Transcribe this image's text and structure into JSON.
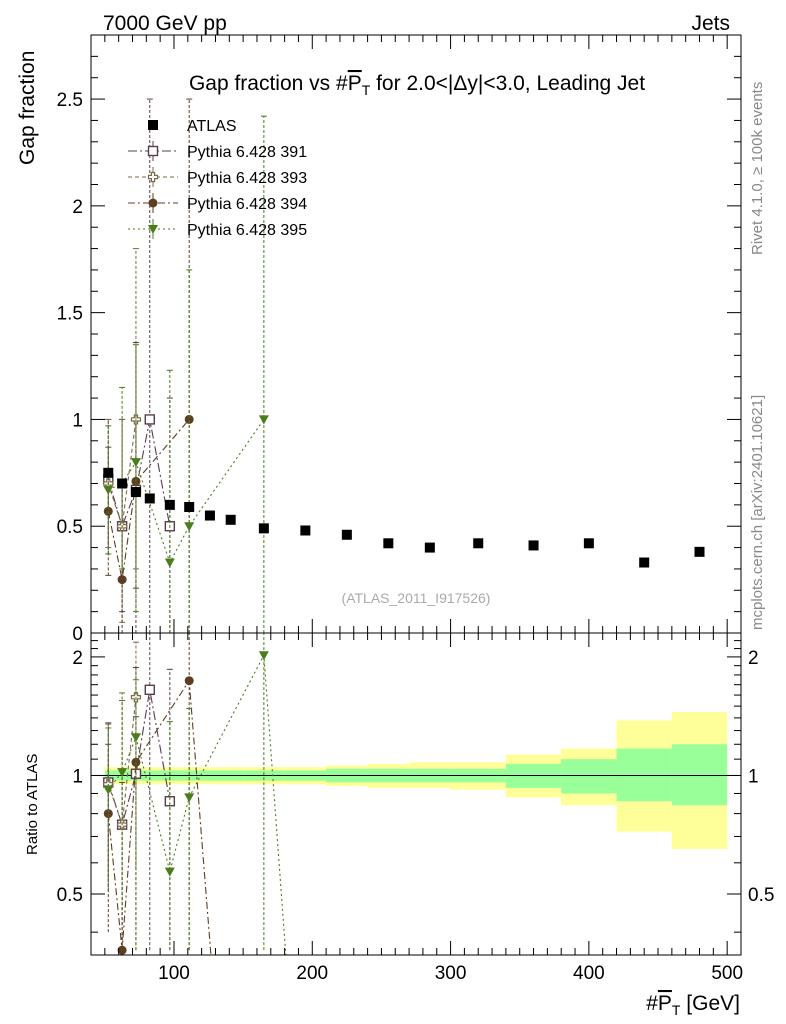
{
  "header": {
    "energy_label": "7000 GeV pp",
    "process_label": "Jets"
  },
  "side": {
    "rivet_label": "Rivet 4.1.0, ≥ 100k events",
    "source_label": "mcplots.cern.ch [arXiv:2401.10621]"
  },
  "chart_data": {
    "type": "scatter",
    "title": "Gap fraction vs #P̅T for 2.0<|Δy|<3.0, Leading Jet",
    "title_parts": {
      "pre": "Gap fraction vs #",
      "p": "P",
      "t": "T",
      "post": " for 2.0<|Δy|<3.0, Leading Jet"
    },
    "watermark": "(ATLAS_2011_I917526)",
    "ylabel": "Gap fraction",
    "ratio_ylabel": "Ratio to ATLAS",
    "xlabel_parts": {
      "pre": "#",
      "p": "P",
      "t": "T",
      "post": " [GeV]"
    },
    "xlim": [
      40,
      510
    ],
    "ylim": [
      0,
      2.8
    ],
    "ratio_ylim": [
      0.35,
      2.3
    ],
    "x_ticks": [
      100,
      200,
      300,
      400,
      500
    ],
    "x_tick_labels": [
      "100",
      "200",
      "300",
      "400",
      "500"
    ],
    "y_ticks": [
      0,
      0.5,
      1,
      1.5,
      2,
      2.5
    ],
    "y_tick_labels": [
      "0",
      "0.5",
      "1",
      "1.5",
      "2",
      "2.5"
    ],
    "ratio_y_ticks": [
      0.5,
      1,
      2
    ],
    "ratio_y_tick_labels": [
      "0.5",
      "1",
      "2"
    ],
    "atlas": {
      "name": "ATLAS",
      "x": [
        52.5,
        62.5,
        72.5,
        82.5,
        97,
        111,
        126,
        141,
        165,
        195,
        225,
        255,
        285,
        320,
        360,
        400,
        440,
        480
      ],
      "y": [
        0.75,
        0.7,
        0.66,
        0.63,
        0.6,
        0.59,
        0.55,
        0.53,
        0.49,
        0.48,
        0.46,
        0.42,
        0.4,
        0.42,
        0.41,
        0.42,
        0.33,
        0.38
      ]
    },
    "bands": {
      "edges": [
        50,
        55,
        60,
        65,
        70,
        75,
        80,
        90,
        105,
        118,
        134,
        150,
        180,
        210,
        240,
        270,
        300,
        340,
        380,
        420,
        460,
        500
      ],
      "green_lo": [
        0.97,
        0.97,
        0.97,
        0.97,
        0.97,
        0.97,
        0.97,
        0.97,
        0.97,
        0.97,
        0.97,
        0.97,
        0.97,
        0.96,
        0.96,
        0.96,
        0.96,
        0.93,
        0.9,
        0.86,
        0.84
      ],
      "green_hi": [
        1.03,
        1.03,
        1.03,
        1.03,
        1.03,
        1.03,
        1.03,
        1.03,
        1.03,
        1.03,
        1.03,
        1.03,
        1.03,
        1.04,
        1.04,
        1.04,
        1.04,
        1.07,
        1.1,
        1.17,
        1.2
      ],
      "yellow_lo": [
        0.95,
        0.95,
        0.95,
        0.95,
        0.95,
        0.95,
        0.95,
        0.95,
        0.95,
        0.95,
        0.95,
        0.95,
        0.95,
        0.94,
        0.93,
        0.93,
        0.92,
        0.88,
        0.84,
        0.72,
        0.65
      ],
      "yellow_hi": [
        1.05,
        1.05,
        1.05,
        1.05,
        1.05,
        1.05,
        1.05,
        1.05,
        1.05,
        1.05,
        1.05,
        1.05,
        1.05,
        1.06,
        1.07,
        1.08,
        1.08,
        1.13,
        1.17,
        1.38,
        1.45
      ]
    },
    "series": [
      {
        "name": "Pythia 6.428 391",
        "marker": "open-square",
        "color": "#5a3c4e",
        "dash": "9 3 2 3",
        "x": [
          52.5,
          62.5,
          72.5,
          82.5,
          97
        ],
        "y": [
          0.72,
          0.5,
          0.67,
          1.0,
          0.5
        ],
        "err_lo": [
          0.35,
          0.4,
          0.67,
          1.0,
          0.5
        ],
        "err_hi": [
          0.28,
          0.5,
          0.33,
          1.5,
          0.6
        ],
        "ratio": [
          0.96,
          0.75,
          1.01,
          1.65,
          0.86
        ],
        "ratio_lo": [
          0.45,
          0.5,
          1.01,
          1.65,
          0.86
        ],
        "ratio_hi": [
          0.4,
          0.8,
          0.4,
          1.6,
          1.0
        ]
      },
      {
        "name": "Pythia 6.428 393",
        "marker": "open-cross",
        "color": "#7d6a48",
        "dash": "4 3",
        "x": [
          52.5,
          62.5,
          72.5
        ],
        "y": [
          0.7,
          0.5,
          1.0
        ],
        "err_lo": [
          0.3,
          0.45,
          0.7
        ],
        "err_hi": [
          0.3,
          0.5,
          0.8
        ],
        "ratio": [
          0.95,
          0.75,
          1.58
        ],
        "ratio_lo": [
          0.4,
          0.55,
          1.0
        ],
        "ratio_hi": [
          0.4,
          0.8,
          0.6
        ]
      },
      {
        "name": "Pythia 6.428 394",
        "marker": "filled-circle",
        "color": "#5c3f22",
        "dash": "7 3 2 3",
        "x": [
          52.5,
          62.5,
          72.5,
          111
        ],
        "y": [
          0.57,
          0.25,
          0.71,
          1.0
        ],
        "err_lo": [
          0.3,
          0.25,
          0.5,
          1.0
        ],
        "err_hi": [
          0.3,
          0.45,
          0.65,
          1.5
        ],
        "ratio": [
          0.8,
          0.36,
          1.08,
          1.74
        ],
        "ratio_lo": [
          0.4,
          0.36,
          0.8,
          1.74
        ],
        "ratio_hi": [
          0.4,
          0.6,
          0.8,
          1.0
        ]
      },
      {
        "name": "Pythia 6.428 395",
        "marker": "filled-triangle-down",
        "color": "#4a7d1c",
        "dash": "2 3",
        "x": [
          52.5,
          62.5,
          72.5,
          97,
          111,
          165
        ],
        "y": [
          0.67,
          0.7,
          0.8,
          0.33,
          0.5,
          1.0
        ],
        "err_lo": [
          0.3,
          0.4,
          0.7,
          0.33,
          0.5,
          1.0
        ],
        "err_hi": [
          0.3,
          0.45,
          0.55,
          0.9,
          1.2,
          1.42
        ],
        "ratio": [
          0.92,
          1.02,
          1.25,
          0.57,
          0.88,
          2.02
        ],
        "ratio_lo": [
          0.4,
          0.55,
          1.0,
          0.57,
          0.88,
          2.02
        ],
        "ratio_hi": [
          0.4,
          0.6,
          0.5,
          0.8,
          0.6,
          1.0
        ]
      }
    ]
  }
}
